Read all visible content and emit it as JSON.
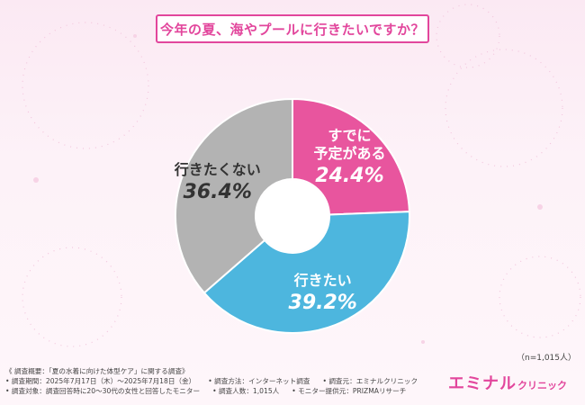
{
  "title": "今年の夏、海やプールに行きたいですか？",
  "note": "（n=1,015人）",
  "footer": {
    "summary": "《 調査概要：「夏の水着に向けた体型ケア」に関する調査》",
    "row1": [
      "• 調査期間：2025年7月17日（木）～2025年7月18日（金）",
      "• 調査方法：インターネット調査",
      "• 調査元：エミナルクリニック"
    ],
    "row2": [
      "• 調査対象：調査回答時に20～30代の女性と回答したモニター",
      "• 調査人数：1,015人",
      "• モニター提供元：PRIZMAリサーチ"
    ]
  },
  "brand": {
    "main": "エミナル",
    "sub": "クリニック"
  },
  "colors": {
    "accent": "#e2469c"
  },
  "chart_data": {
    "type": "pie",
    "style": "donut",
    "title": "今年の夏、海やプールに行きたいですか？",
    "slices": [
      {
        "label": "すでに予定がある",
        "label_lines": [
          "すでに",
          "予定がある"
        ],
        "value": 24.4,
        "value_text": "24.4%",
        "color": "#e8559e"
      },
      {
        "label": "行きたい",
        "label_lines": [
          "行きたい"
        ],
        "value": 39.2,
        "value_text": "39.2%",
        "color": "#4db6de"
      },
      {
        "label": "行きたくない",
        "label_lines": [
          "行きたくない"
        ],
        "value": 36.4,
        "value_text": "36.4%",
        "color": "#b3b3b3"
      }
    ]
  }
}
